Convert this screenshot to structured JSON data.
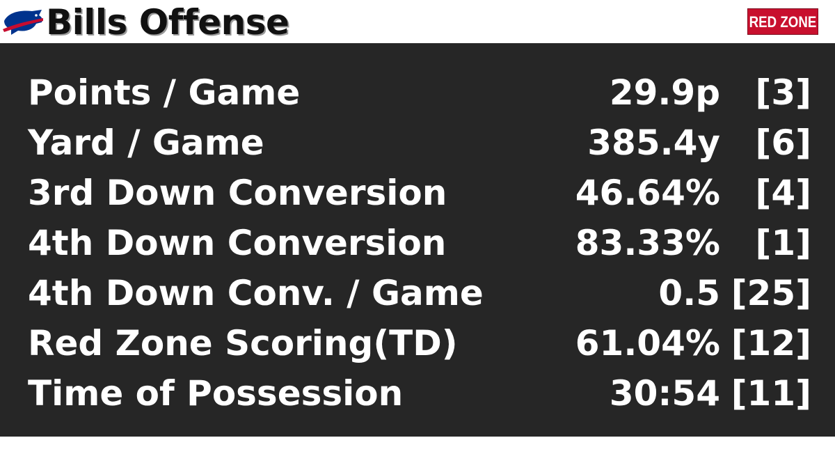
{
  "header": {
    "title": "Bills Offense",
    "badge": "RED ZONE"
  },
  "table": {
    "rows": [
      [
        "Points / Game",
        "29.9p",
        "[3]"
      ],
      [
        "Yard / Game",
        "385.4y",
        "[6]"
      ],
      [
        "3rd Down Conversion",
        "46.64%",
        "[4]"
      ],
      [
        "4th Down Conversion",
        "83.33%",
        "[1]"
      ],
      [
        "4th Down Conv. / Game",
        "0.5",
        "[25]"
      ],
      [
        "Red Zone Scoring(TD)",
        "61.04%",
        "[12]"
      ],
      [
        "Time of Possession",
        "30:54",
        "[11]"
      ]
    ]
  }
}
